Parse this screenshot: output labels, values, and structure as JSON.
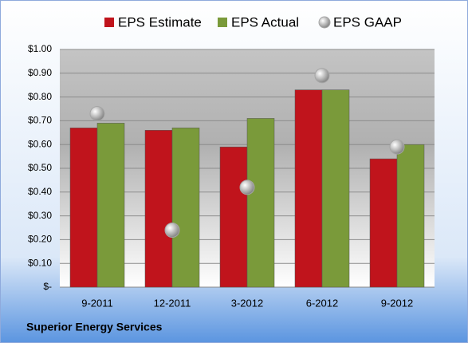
{
  "chart_data": {
    "type": "bar",
    "categories": [
      "9-2011",
      "12-2011",
      "3-2012",
      "6-2012",
      "9-2012"
    ],
    "series": [
      {
        "name": "EPS Estimate",
        "color": "#c0141c",
        "values": [
          0.67,
          0.66,
          0.59,
          0.83,
          0.54
        ]
      },
      {
        "name": "EPS Actual",
        "color": "#7a9a3a",
        "values": [
          0.69,
          0.67,
          0.71,
          0.83,
          0.6
        ]
      },
      {
        "name": "EPS GAAP",
        "color": "#a6a6a6",
        "type": "scatter",
        "values": [
          0.73,
          0.24,
          0.42,
          0.89,
          0.59
        ]
      }
    ],
    "ylim": [
      0,
      1
    ],
    "yticks": [
      {
        "value": 0,
        "label": "$-"
      },
      {
        "value": 0.1,
        "label": "$0.10"
      },
      {
        "value": 0.2,
        "label": "$0.20"
      },
      {
        "value": 0.3,
        "label": "$0.30"
      },
      {
        "value": 0.4,
        "label": "$0.40"
      },
      {
        "value": 0.5,
        "label": "$0.50"
      },
      {
        "value": 0.6,
        "label": "$0.60"
      },
      {
        "value": 0.7,
        "label": "$0.70"
      },
      {
        "value": 0.8,
        "label": "$0.80"
      },
      {
        "value": 0.9,
        "label": "$0.90"
      },
      {
        "value": 1,
        "label": "$1.00"
      }
    ],
    "grid": true,
    "legend": "top",
    "footer": "Superior Energy Services"
  }
}
